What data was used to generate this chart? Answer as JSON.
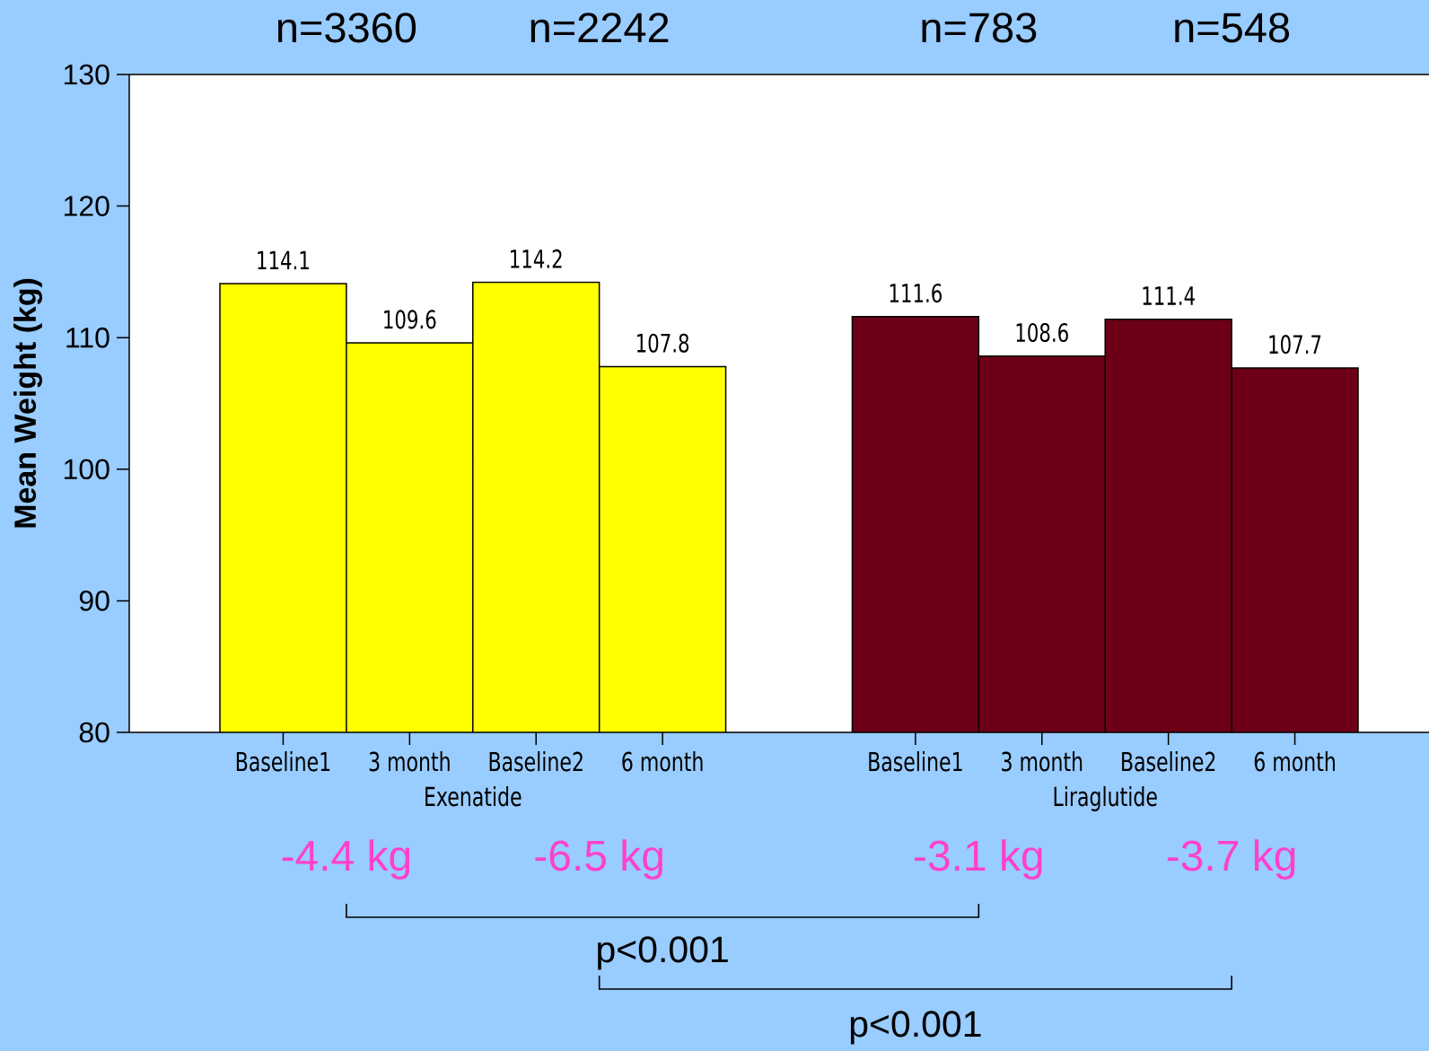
{
  "chart_data": {
    "type": "bar",
    "ylabel": "Mean Weight (kg)",
    "categories": [
      "Baseline1",
      "3 month",
      "Baseline2",
      "6 month",
      null,
      "Baseline1",
      "3 month",
      "Baseline2",
      "6 month"
    ],
    "series": [
      {
        "name": "Exenatide",
        "color": "#ffff00",
        "values": [
          114.1,
          109.6,
          114.2,
          107.8,
          null,
          null,
          null,
          null,
          null
        ]
      },
      {
        "name": "Liraglutide",
        "color": "#6d0016",
        "values": [
          null,
          null,
          null,
          null,
          null,
          111.6,
          108.6,
          111.4,
          107.7
        ]
      }
    ],
    "ylim": [
      80,
      130
    ],
    "yticks": [
      80,
      90,
      100,
      110,
      120,
      130
    ],
    "data_labels": true,
    "annotations": [
      "n=3360",
      "n=2242",
      "n=783",
      "n=548",
      "-4.4 kg",
      "-6.5 kg",
      "-3.1 kg",
      "-3.7 kg",
      "p<0.001",
      "p<0.001"
    ]
  }
}
